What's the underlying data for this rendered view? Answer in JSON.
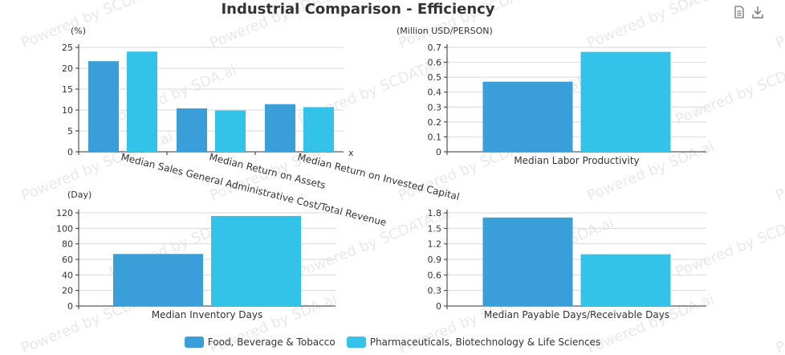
{
  "title": "Industrial Comparison - Efficiency",
  "toolbar": {
    "data_view_icon": "data-view-icon",
    "download_icon": "download-icon"
  },
  "watermark_text": "Powered by SCDATA.ai",
  "watermark_text_alt": "Powered by SDA.ai",
  "legend": [
    {
      "name": "Food, Beverage & Tobacco",
      "color": "#3a9ed9"
    },
    {
      "name": "Pharmaceuticals, Biotechnology & Life Sciences",
      "color": "#33c3e8"
    }
  ],
  "chart_data": [
    {
      "type": "bar",
      "ylabel": "(%)",
      "xlabel": "x",
      "categories": [
        "Median Sales General Administrative Cost/Total Revenue",
        "Median Return on Assets",
        "Median Return on Invested Capital"
      ],
      "ylim": [
        0,
        25
      ],
      "yticks": [
        "0",
        "5",
        "10",
        "15",
        "20",
        "25"
      ],
      "series": [
        {
          "name": "Food, Beverage & Tobacco",
          "values": [
            21.7,
            10.4,
            11.4
          ]
        },
        {
          "name": "Pharmaceuticals, Biotechnology & Life Sciences",
          "values": [
            24.0,
            9.9,
            10.7
          ]
        }
      ]
    },
    {
      "type": "bar",
      "ylabel": "(Million USD/PERSON)",
      "categories": [
        "Median Labor Productivity"
      ],
      "ylim": [
        0,
        0.7
      ],
      "yticks": [
        "0",
        "0.1",
        "0.2",
        "0.3",
        "0.4",
        "0.5",
        "0.6",
        "0.7"
      ],
      "series": [
        {
          "name": "Food, Beverage & Tobacco",
          "values": [
            0.47
          ]
        },
        {
          "name": "Pharmaceuticals, Biotechnology & Life Sciences",
          "values": [
            0.67
          ]
        }
      ]
    },
    {
      "type": "bar",
      "ylabel": "(Day)",
      "categories": [
        "Median Inventory Days"
      ],
      "ylim": [
        0,
        120
      ],
      "yticks": [
        "0",
        "20",
        "40",
        "60",
        "80",
        "100",
        "120"
      ],
      "series": [
        {
          "name": "Food, Beverage & Tobacco",
          "values": [
            67
          ]
        },
        {
          "name": "Pharmaceuticals, Biotechnology & Life Sciences",
          "values": [
            116
          ]
        }
      ]
    },
    {
      "type": "bar",
      "ylabel": "",
      "categories": [
        "Median Payable Days/Receivable Days"
      ],
      "ylim": [
        0,
        1.8
      ],
      "yticks": [
        "0",
        "0.3",
        "0.6",
        "0.9",
        "1.2",
        "1.5",
        "1.8"
      ],
      "series": [
        {
          "name": "Food, Beverage & Tobacco",
          "values": [
            1.71
          ]
        },
        {
          "name": "Pharmaceuticals, Biotechnology & Life Sciences",
          "values": [
            1.0
          ]
        }
      ]
    }
  ]
}
